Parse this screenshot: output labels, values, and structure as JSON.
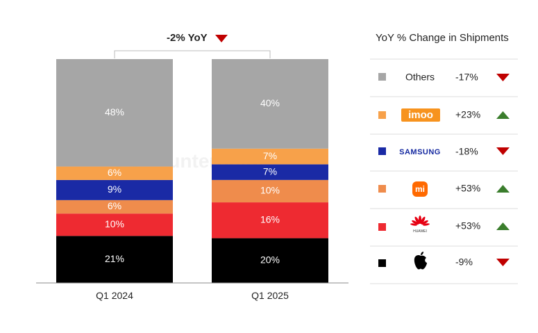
{
  "chart_data": {
    "type": "bar",
    "stacked": true,
    "categories": [
      "Q1 2024",
      "Q1 2025"
    ],
    "series": [
      {
        "name": "Apple",
        "color": "#000000",
        "values": [
          21,
          20
        ],
        "labels": [
          "21%",
          "20%"
        ]
      },
      {
        "name": "Huawei",
        "color": "#ee2a31",
        "values": [
          10,
          16
        ],
        "labels": [
          "10%",
          "16%"
        ]
      },
      {
        "name": "Xiaomi",
        "color": "#ef8c4c",
        "values": [
          6,
          10
        ],
        "labels": [
          "6%",
          "10%"
        ]
      },
      {
        "name": "Samsung",
        "color": "#1a2aa5",
        "values": [
          9,
          7
        ],
        "labels": [
          "9%",
          "7%"
        ]
      },
      {
        "name": "imoo",
        "color": "#f7a14a",
        "values": [
          6,
          7
        ],
        "labels": [
          "6%",
          "7%"
        ]
      },
      {
        "name": "Others",
        "color": "#a6a6a6",
        "values": [
          48,
          40
        ],
        "labels": [
          "48%",
          "40%"
        ]
      }
    ],
    "ylim": [
      0,
      100
    ],
    "total_change": {
      "label": "-2% YoY",
      "direction": "down"
    },
    "legend": {
      "title": "YoY % Change in Shipments",
      "placement": "right",
      "items": [
        {
          "key": "others",
          "name": "Others",
          "brand_mark": "text",
          "color": "#a6a6a6",
          "change": "-17%",
          "direction": "down"
        },
        {
          "key": "imoo",
          "name": "imoo",
          "brand_mark": "imoo-logo",
          "color": "#f7a14a",
          "change": "+23%",
          "direction": "up"
        },
        {
          "key": "samsung",
          "name": "SAMSUNG",
          "brand_mark": "samsung-logo",
          "color": "#1a2aa5",
          "change": "-18%",
          "direction": "down"
        },
        {
          "key": "xiaomi",
          "name": "mi",
          "brand_mark": "xiaomi-logo",
          "color": "#ef8c4c",
          "change": "+53%",
          "direction": "up"
        },
        {
          "key": "huawei",
          "name": "HUAWEI",
          "brand_mark": "huawei-logo",
          "color": "#ee2a31",
          "change": "+53%",
          "direction": "up"
        },
        {
          "key": "apple",
          "name": "Apple",
          "brand_mark": "apple-logo",
          "color": "#000000",
          "change": "-9%",
          "direction": "down"
        }
      ]
    },
    "colors": {
      "up": "#3a7d2c",
      "down": "#c00000"
    },
    "watermark": "Counterpoint"
  }
}
